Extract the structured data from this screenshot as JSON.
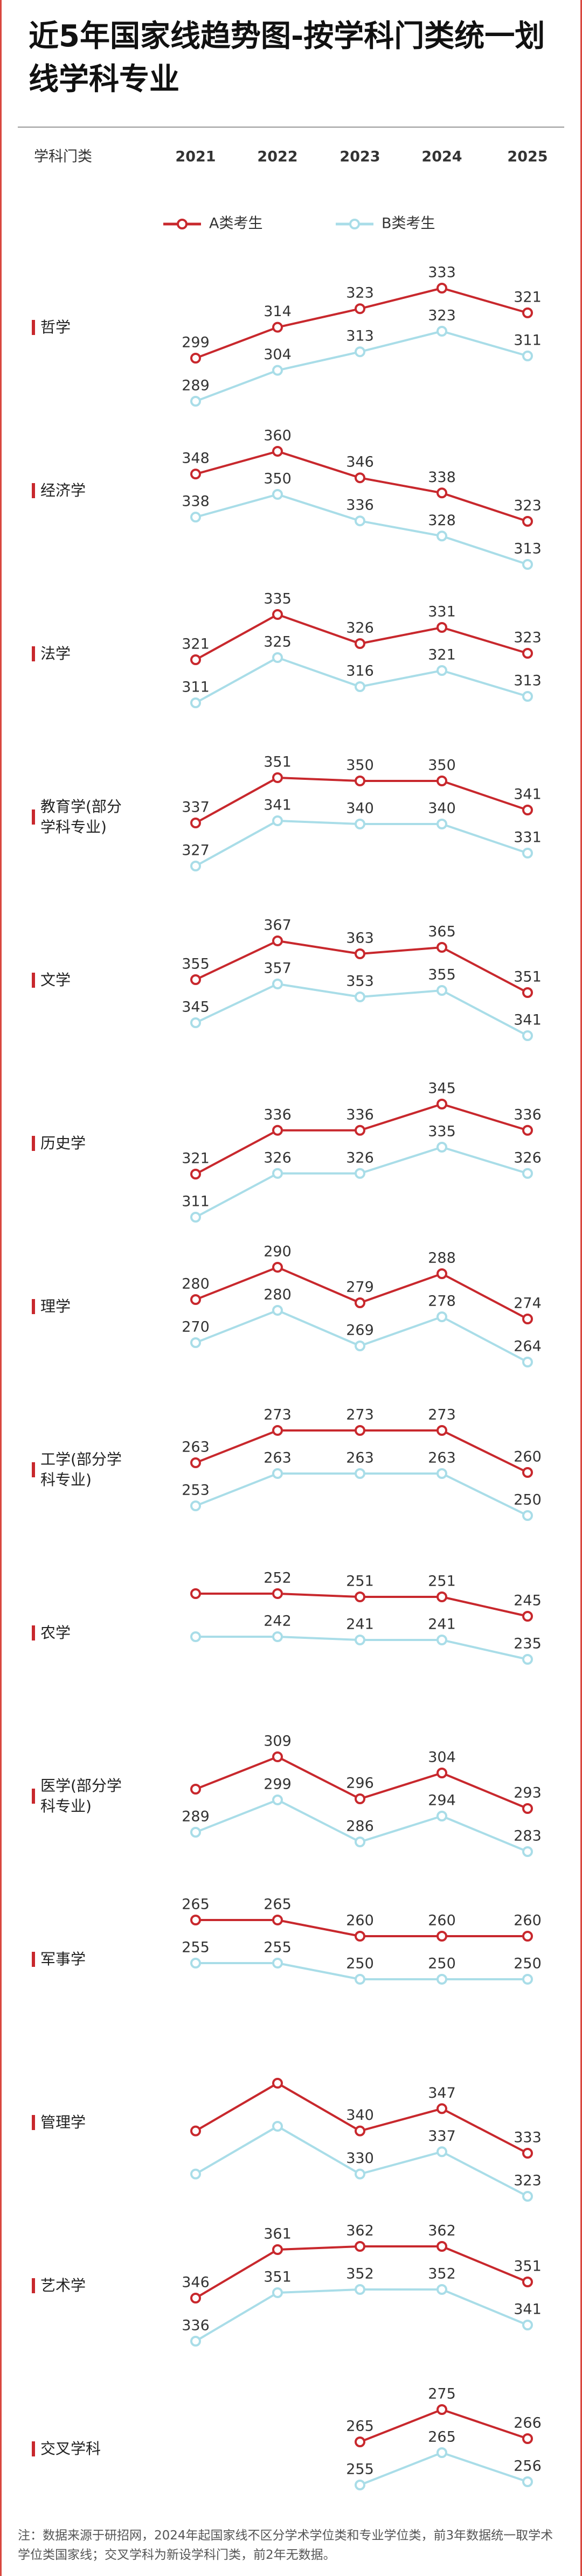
{
  "chart_data": {
    "type": "line",
    "title": "近5年国家线趋势图-按学科门类统一划线学科专业",
    "category_header": "学科门类",
    "categories": [
      "2021",
      "2022",
      "2023",
      "2024",
      "2025"
    ],
    "series": [
      {
        "name": "A类考生",
        "color": "#c8282d"
      },
      {
        "name": "B类考生",
        "color": "#a9dde8"
      }
    ],
    "panels": [
      {
        "label": "哲学",
        "values": [
          [
            299,
            314,
            323,
            333,
            321
          ],
          [
            289,
            304,
            313,
            323,
            311
          ]
        ]
      },
      {
        "label": "经济学",
        "values": [
          [
            348,
            360,
            346,
            338,
            323
          ],
          [
            338,
            350,
            336,
            328,
            313
          ]
        ]
      },
      {
        "label": "法学",
        "values": [
          [
            321,
            335,
            326,
            331,
            323
          ],
          [
            311,
            325,
            316,
            321,
            313
          ]
        ]
      },
      {
        "label": "教育学(部分学科专业)",
        "values": [
          [
            337,
            351,
            350,
            350,
            341
          ],
          [
            327,
            341,
            340,
            340,
            331
          ]
        ]
      },
      {
        "label": "文学",
        "values": [
          [
            355,
            367,
            363,
            365,
            351
          ],
          [
            345,
            357,
            353,
            355,
            341
          ]
        ]
      },
      {
        "label": "历史学",
        "values": [
          [
            321,
            336,
            336,
            345,
            336
          ],
          [
            311,
            326,
            326,
            335,
            326
          ]
        ]
      },
      {
        "label": "理学",
        "values": [
          [
            280,
            290,
            279,
            288,
            274
          ],
          [
            270,
            280,
            269,
            278,
            264
          ]
        ]
      },
      {
        "label": "工学(部分学科专业)",
        "values": [
          [
            263,
            273,
            273,
            273,
            260
          ],
          [
            253,
            263,
            263,
            263,
            250
          ]
        ]
      },
      {
        "label": "农学",
        "values": [
          [
            252,
            252,
            251,
            251,
            245
          ],
          [
            242,
            242,
            241,
            241,
            235
          ]
        ],
        "value_labels": [
          [
            null,
            "252",
            "251",
            "251",
            "245"
          ],
          [
            null,
            "242",
            "241",
            "241",
            "235"
          ]
        ]
      },
      {
        "label": "医学(部分学科专业)",
        "values": [
          [
            299,
            309,
            296,
            304,
            293
          ],
          [
            289,
            299,
            286,
            294,
            283
          ]
        ],
        "value_labels": [
          [
            null,
            "309",
            "296",
            "304",
            "293"
          ],
          [
            "289",
            "299",
            "286",
            "294",
            "283"
          ]
        ]
      },
      {
        "label": "军事学",
        "values": [
          [
            265,
            265,
            260,
            260,
            260
          ],
          [
            255,
            255,
            250,
            250,
            250
          ]
        ]
      },
      {
        "label": "管理学",
        "values": [
          [
            340,
            355,
            340,
            347,
            333
          ],
          [
            330,
            345,
            330,
            337,
            323
          ]
        ],
        "value_labels": [
          [
            null,
            null,
            "340",
            "347",
            "333"
          ],
          [
            null,
            null,
            "330",
            "337",
            "323"
          ]
        ]
      },
      {
        "label": "艺术学",
        "values": [
          [
            346,
            361,
            362,
            362,
            351
          ],
          [
            336,
            351,
            352,
            352,
            341
          ]
        ]
      },
      {
        "label": "交叉学科",
        "values": [
          [
            null,
            null,
            265,
            275,
            266
          ],
          [
            null,
            null,
            255,
            265,
            256
          ]
        ]
      }
    ],
    "note": "注：数据来源于研招网，2024年起国家线不区分学术学位类和专业学位类，前3年数据统一取学术学位类国家线；交叉学科为新设学科门类，前2年无数据。"
  }
}
